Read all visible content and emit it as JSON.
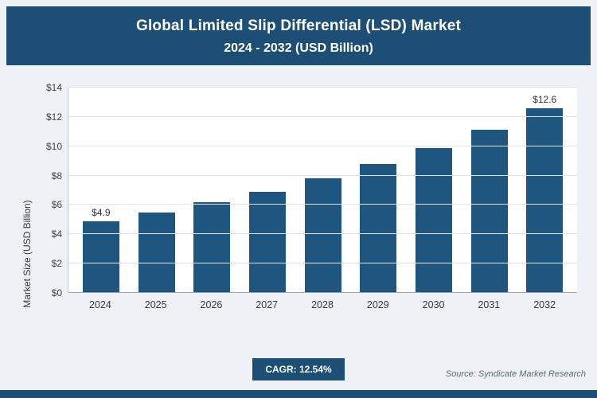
{
  "header": {
    "title_line1": "Global Limited Slip Differential (LSD) Market",
    "title_line2": "2024 - 2032 (USD Billion)"
  },
  "chart_data": {
    "type": "bar",
    "title": "Global Limited Slip Differential (LSD) Market",
    "subtitle": "2024 - 2032 (USD Billion)",
    "categories": [
      "2024",
      "2025",
      "2026",
      "2027",
      "2028",
      "2029",
      "2030",
      "2031",
      "2032"
    ],
    "values": [
      4.9,
      5.5,
      6.2,
      6.9,
      7.8,
      8.8,
      9.9,
      11.1,
      12.6
    ],
    "point_labels": [
      "$4.9",
      "",
      "",
      "",
      "",
      "",
      "",
      "",
      "$12.6"
    ],
    "xlabel": "",
    "ylabel": "Market Size (USD Billion)",
    "ylim": [
      0,
      14
    ],
    "ytick_step": 2,
    "ytick_prefix": "$",
    "grid": "horizontal",
    "legend": "none",
    "bar_color": "#1f567f"
  },
  "footer": {
    "cagr_label": "CAGR: 12.54%",
    "source": "Source: Syndicate Market Research"
  },
  "colors": {
    "header_bg": "#1d4e76",
    "bar": "#1f567f",
    "page_bg": "#eef1f5",
    "plot_bg": "#ffffff"
  }
}
